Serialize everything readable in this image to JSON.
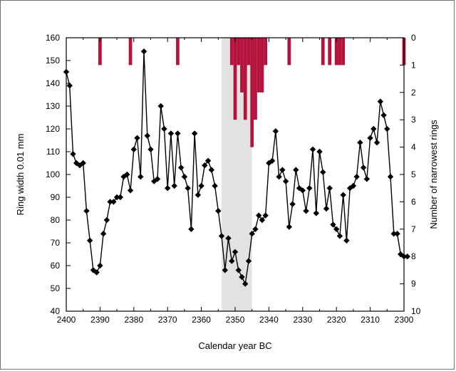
{
  "chart_data": {
    "type": "line",
    "xlabel": "Calendar year BC",
    "ylabel": "Ring width 0.01 mm",
    "y2label": "Number of narrowest rings",
    "xlim": [
      2400,
      2300
    ],
    "ylim": [
      40,
      160
    ],
    "y2lim": [
      0,
      10
    ],
    "x_ticks": [
      2400,
      2390,
      2380,
      2370,
      2360,
      2350,
      2340,
      2330,
      2320,
      2310,
      2300
    ],
    "y_ticks": [
      40,
      50,
      60,
      70,
      80,
      90,
      100,
      110,
      120,
      130,
      140,
      150,
      160
    ],
    "y2_ticks": [
      0,
      1,
      2,
      3,
      4,
      5,
      6,
      7,
      8,
      9,
      10
    ],
    "shaded_region": {
      "x": [
        2354,
        2345
      ],
      "color": "#e2e2e2"
    },
    "series": [
      {
        "type": "line",
        "axis": "left",
        "color": "#000000",
        "marker": "diamond",
        "points": [
          [
            2400,
            145
          ],
          [
            2399,
            139
          ],
          [
            2398,
            109
          ],
          [
            2397,
            105
          ],
          [
            2396,
            104
          ],
          [
            2395,
            105
          ],
          [
            2394,
            84
          ],
          [
            2393,
            71
          ],
          [
            2392,
            58
          ],
          [
            2391,
            57
          ],
          [
            2390,
            60
          ],
          [
            2389,
            74
          ],
          [
            2388,
            80
          ],
          [
            2387,
            88
          ],
          [
            2386,
            88
          ],
          [
            2385,
            90
          ],
          [
            2384,
            90
          ],
          [
            2383,
            99
          ],
          [
            2382,
            100
          ],
          [
            2381,
            93
          ],
          [
            2380,
            111
          ],
          [
            2379,
            116
          ],
          [
            2378,
            99
          ],
          [
            2377,
            154
          ],
          [
            2376,
            117
          ],
          [
            2375,
            111
          ],
          [
            2374,
            97
          ],
          [
            2373,
            98
          ],
          [
            2372,
            130
          ],
          [
            2371,
            120
          ],
          [
            2370,
            94
          ],
          [
            2369,
            118
          ],
          [
            2368,
            95
          ],
          [
            2367,
            118
          ],
          [
            2366,
            103
          ],
          [
            2365,
            99
          ],
          [
            2364,
            94
          ],
          [
            2363,
            76
          ],
          [
            2362,
            118
          ],
          [
            2361,
            91
          ],
          [
            2360,
            95
          ],
          [
            2359,
            104
          ],
          [
            2358,
            106
          ],
          [
            2357,
            102
          ],
          [
            2356,
            95
          ],
          [
            2355,
            84
          ],
          [
            2354,
            73
          ],
          [
            2353,
            58
          ],
          [
            2352,
            72
          ],
          [
            2351,
            62
          ],
          [
            2350,
            66
          ],
          [
            2349,
            58
          ],
          [
            2348,
            55
          ],
          [
            2347,
            52
          ],
          [
            2346,
            62
          ],
          [
            2345,
            74
          ],
          [
            2344,
            76
          ],
          [
            2343,
            82
          ],
          [
            2342,
            80
          ],
          [
            2341,
            82
          ],
          [
            2340,
            105
          ],
          [
            2339,
            106
          ],
          [
            2338,
            119
          ],
          [
            2337,
            99
          ],
          [
            2336,
            102
          ],
          [
            2335,
            97
          ],
          [
            2334,
            77
          ],
          [
            2333,
            87
          ],
          [
            2332,
            102
          ],
          [
            2331,
            94
          ],
          [
            2330,
            93
          ],
          [
            2329,
            84
          ],
          [
            2328,
            94
          ],
          [
            2327,
            111
          ],
          [
            2326,
            83
          ],
          [
            2325,
            110
          ],
          [
            2324,
            101
          ],
          [
            2323,
            85
          ],
          [
            2322,
            94
          ],
          [
            2321,
            78
          ],
          [
            2320,
            76
          ],
          [
            2319,
            73
          ],
          [
            2318,
            91
          ],
          [
            2317,
            71
          ],
          [
            2316,
            94
          ],
          [
            2315,
            95
          ],
          [
            2314,
            99
          ],
          [
            2313,
            114
          ],
          [
            2312,
            103
          ],
          [
            2311,
            98
          ],
          [
            2310,
            116
          ],
          [
            2309,
            120
          ],
          [
            2308,
            114
          ],
          [
            2307,
            132
          ],
          [
            2306,
            126
          ],
          [
            2305,
            120
          ],
          [
            2304,
            99
          ],
          [
            2303,
            74
          ],
          [
            2302,
            74
          ],
          [
            2301,
            65
          ],
          [
            2300,
            64
          ],
          [
            2299,
            64
          ]
        ]
      },
      {
        "type": "bar",
        "axis": "right",
        "color": "#b5123d",
        "points": [
          [
            2390,
            1
          ],
          [
            2381,
            1
          ],
          [
            2367,
            1
          ],
          [
            2351,
            1
          ],
          [
            2350,
            3
          ],
          [
            2349,
            1
          ],
          [
            2348,
            2
          ],
          [
            2347,
            3
          ],
          [
            2346,
            1
          ],
          [
            2345,
            4
          ],
          [
            2344,
            3
          ],
          [
            2343,
            2
          ],
          [
            2342,
            2
          ],
          [
            2341,
            1
          ],
          [
            2334,
            1
          ],
          [
            2324,
            1
          ],
          [
            2322,
            1
          ],
          [
            2320,
            1
          ],
          [
            2319,
            1
          ],
          [
            2318,
            1
          ],
          [
            2300,
            1
          ]
        ]
      }
    ]
  }
}
